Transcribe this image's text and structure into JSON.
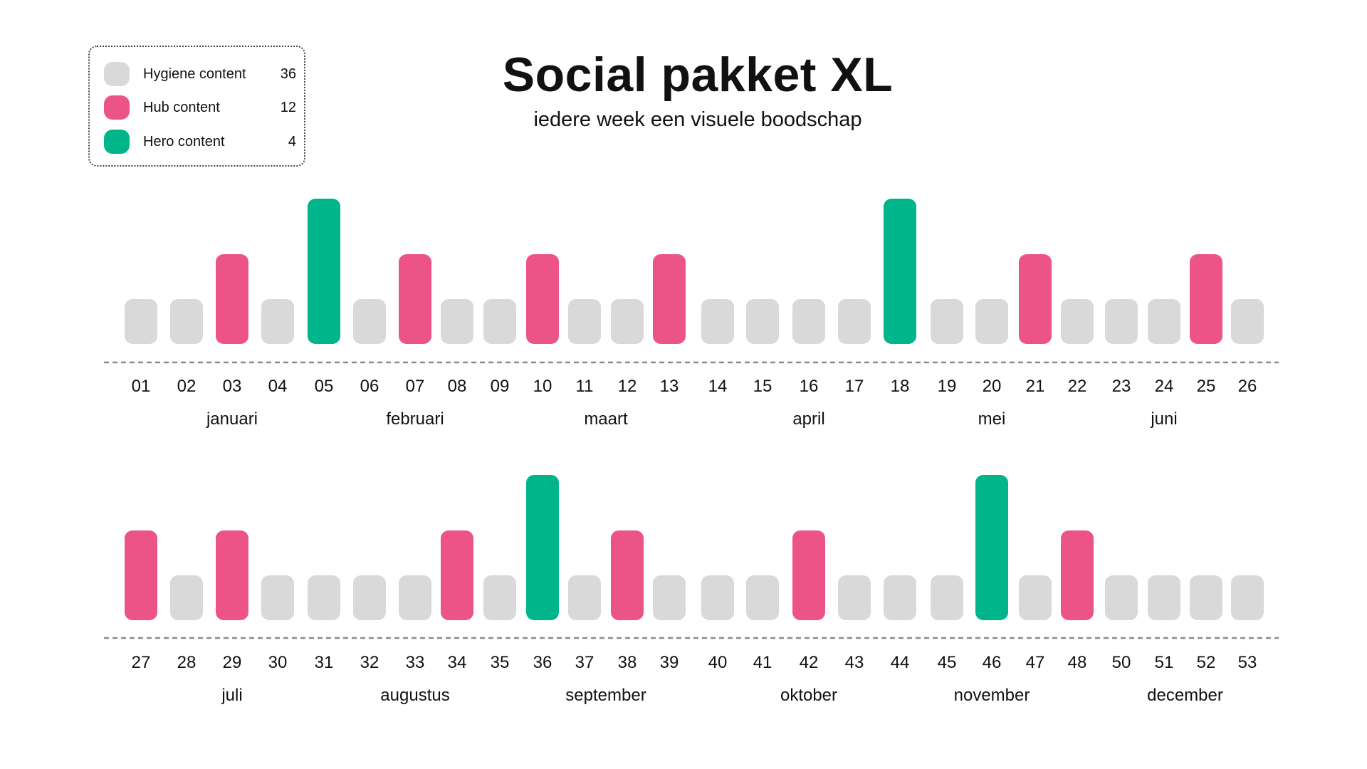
{
  "title": "Social pakket XL",
  "subtitle": "iedere week een visuele boodschap",
  "legend": [
    {
      "label": "Hygiene content",
      "count": "36",
      "color": "#d9d9d9"
    },
    {
      "label": "Hub content",
      "count": "12",
      "color": "#ec5488"
    },
    {
      "label": "Hero content",
      "count": "4",
      "color": "#00b589"
    }
  ],
  "chart_data": {
    "type": "bar",
    "title": "Social pakket XL",
    "subtitle": "iedere week een visuele boodschap",
    "colors": {
      "hygiene": "#d9d9d9",
      "hub": "#ec5488",
      "hero": "#00b589"
    },
    "levels": {
      "hygiene": 1,
      "hub": 2,
      "hero": 3
    },
    "rows": [
      {
        "weeks": [
          {
            "week": "01",
            "type": "hygiene"
          },
          {
            "week": "02",
            "type": "hygiene"
          },
          {
            "week": "03",
            "type": "hub"
          },
          {
            "week": "04",
            "type": "hygiene"
          },
          {
            "week": "05",
            "type": "hero"
          },
          {
            "week": "06",
            "type": "hygiene"
          },
          {
            "week": "07",
            "type": "hub"
          },
          {
            "week": "08",
            "type": "hygiene"
          },
          {
            "week": "09",
            "type": "hygiene"
          },
          {
            "week": "10",
            "type": "hub"
          },
          {
            "week": "11",
            "type": "hygiene"
          },
          {
            "week": "12",
            "type": "hygiene"
          },
          {
            "week": "13",
            "type": "hub"
          },
          {
            "week": "14",
            "type": "hygiene"
          },
          {
            "week": "15",
            "type": "hygiene"
          },
          {
            "week": "16",
            "type": "hygiene"
          },
          {
            "week": "17",
            "type": "hygiene"
          },
          {
            "week": "18",
            "type": "hero"
          },
          {
            "week": "19",
            "type": "hygiene"
          },
          {
            "week": "20",
            "type": "hygiene"
          },
          {
            "week": "21",
            "type": "hub"
          },
          {
            "week": "22",
            "type": "hygiene"
          },
          {
            "week": "23",
            "type": "hygiene"
          },
          {
            "week": "24",
            "type": "hygiene"
          },
          {
            "week": "25",
            "type": "hub"
          },
          {
            "week": "26",
            "type": "hygiene"
          }
        ],
        "months": [
          {
            "name": "januari",
            "weeks": [
              "03"
            ]
          },
          {
            "name": "februari",
            "weeks": [
              "07"
            ]
          },
          {
            "name": "maart",
            "weeks": [
              "11",
              "12"
            ]
          },
          {
            "name": "april",
            "weeks": [
              "16"
            ]
          },
          {
            "name": "mei",
            "weeks": [
              "20"
            ]
          },
          {
            "name": "juni",
            "weeks": [
              "24"
            ]
          }
        ]
      },
      {
        "weeks": [
          {
            "week": "27",
            "type": "hub"
          },
          {
            "week": "28",
            "type": "hygiene"
          },
          {
            "week": "29",
            "type": "hub"
          },
          {
            "week": "30",
            "type": "hygiene"
          },
          {
            "week": "31",
            "type": "hygiene"
          },
          {
            "week": "32",
            "type": "hygiene"
          },
          {
            "week": "33",
            "type": "hygiene"
          },
          {
            "week": "34",
            "type": "hub"
          },
          {
            "week": "35",
            "type": "hygiene"
          },
          {
            "week": "36",
            "type": "hero"
          },
          {
            "week": "37",
            "type": "hygiene"
          },
          {
            "week": "38",
            "type": "hub"
          },
          {
            "week": "39",
            "type": "hygiene"
          },
          {
            "week": "40",
            "type": "hygiene"
          },
          {
            "week": "41",
            "type": "hygiene"
          },
          {
            "week": "42",
            "type": "hub"
          },
          {
            "week": "43",
            "type": "hygiene"
          },
          {
            "week": "44",
            "type": "hygiene"
          },
          {
            "week": "45",
            "type": "hygiene"
          },
          {
            "week": "46",
            "type": "hero"
          },
          {
            "week": "47",
            "type": "hygiene"
          },
          {
            "week": "48",
            "type": "hub"
          },
          {
            "week": "50",
            "type": "hygiene"
          },
          {
            "week": "51",
            "type": "hygiene"
          },
          {
            "week": "52",
            "type": "hygiene"
          },
          {
            "week": "53",
            "type": "hygiene"
          }
        ],
        "months": [
          {
            "name": "juli",
            "weeks": [
              "29"
            ]
          },
          {
            "name": "augustus",
            "weeks": [
              "33"
            ]
          },
          {
            "name": "september",
            "weeks": [
              "37",
              "38"
            ]
          },
          {
            "name": "oktober",
            "weeks": [
              "42"
            ]
          },
          {
            "name": "november",
            "weeks": [
              "46"
            ]
          },
          {
            "name": "december",
            "weeks": [
              "51",
              "52"
            ]
          }
        ]
      }
    ]
  }
}
